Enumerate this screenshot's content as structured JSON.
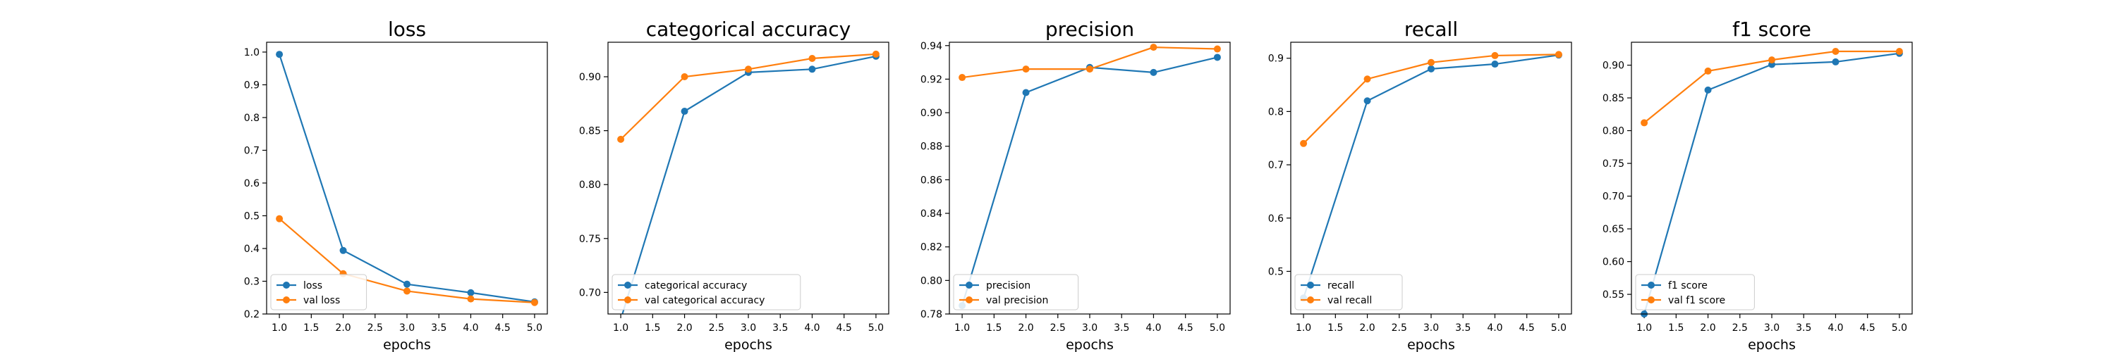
{
  "figure": {
    "colors": {
      "series1": "#1f77b4",
      "series2": "#ff7f0e"
    }
  },
  "chart_data": [
    {
      "type": "line",
      "title": "loss",
      "xlabel": "epochs",
      "ylabel": "",
      "x": [
        1,
        2,
        3,
        4,
        5
      ],
      "xlim": [
        0.8,
        5.2
      ],
      "ylim": [
        0.2,
        1.03
      ],
      "xticks": [
        "1.0",
        "1.5",
        "2.0",
        "2.5",
        "3.0",
        "3.5",
        "4.0",
        "4.5",
        "5.0"
      ],
      "yticks": [
        "0.2",
        "0.3",
        "0.4",
        "0.5",
        "0.6",
        "0.7",
        "0.8",
        "0.9",
        "1.0"
      ],
      "legend": "lower-left",
      "grid": false,
      "series": [
        {
          "name": "loss",
          "values": [
            0.993,
            0.394,
            0.291,
            0.265,
            0.237
          ]
        },
        {
          "name": "val loss",
          "values": [
            0.491,
            0.323,
            0.27,
            0.246,
            0.235
          ]
        }
      ]
    },
    {
      "type": "line",
      "title": "categorical accuracy",
      "xlabel": "epochs",
      "ylabel": "",
      "x": [
        1,
        2,
        3,
        4,
        5
      ],
      "xlim": [
        0.8,
        5.2
      ],
      "ylim": [
        0.68,
        0.932
      ],
      "xticks": [
        "1.0",
        "1.5",
        "2.0",
        "2.5",
        "3.0",
        "3.5",
        "4.0",
        "4.5",
        "5.0"
      ],
      "yticks": [
        "0.70",
        "0.75",
        "0.80",
        "0.85",
        "0.90"
      ],
      "legend": "lower-left",
      "grid": false,
      "series": [
        {
          "name": "categorical accuracy",
          "values": [
            0.675,
            0.868,
            0.904,
            0.907,
            0.919
          ]
        },
        {
          "name": "val categorical accuracy",
          "values": [
            0.842,
            0.9,
            0.907,
            0.917,
            0.921
          ]
        }
      ]
    },
    {
      "type": "line",
      "title": "precision",
      "xlabel": "epochs",
      "ylabel": "",
      "x": [
        1,
        2,
        3,
        4,
        5
      ],
      "xlim": [
        0.8,
        5.2
      ],
      "ylim": [
        0.78,
        0.942
      ],
      "xticks": [
        "1.0",
        "1.5",
        "2.0",
        "2.5",
        "3.0",
        "3.5",
        "4.0",
        "4.5",
        "5.0"
      ],
      "yticks": [
        "0.78",
        "0.80",
        "0.82",
        "0.84",
        "0.86",
        "0.88",
        "0.90",
        "0.92",
        "0.94"
      ],
      "legend": "lower-left",
      "grid": false,
      "series": [
        {
          "name": "precision",
          "values": [
            0.785,
            0.912,
            0.927,
            0.924,
            0.933
          ]
        },
        {
          "name": "val precision",
          "values": [
            0.921,
            0.926,
            0.926,
            0.939,
            0.938
          ]
        }
      ]
    },
    {
      "type": "line",
      "title": "recall",
      "xlabel": "epochs",
      "ylabel": "",
      "x": [
        1,
        2,
        3,
        4,
        5
      ],
      "xlim": [
        0.8,
        5.2
      ],
      "ylim": [
        0.42,
        0.93
      ],
      "xticks": [
        "1.0",
        "1.5",
        "2.0",
        "2.5",
        "3.0",
        "3.5",
        "4.0",
        "4.5",
        "5.0"
      ],
      "yticks": [
        "0.5",
        "0.6",
        "0.7",
        "0.8",
        "0.9"
      ],
      "legend": "lower-left",
      "grid": false,
      "series": [
        {
          "name": "recall",
          "values": [
            0.45,
            0.82,
            0.88,
            0.889,
            0.906
          ]
        },
        {
          "name": "val recall",
          "values": [
            0.74,
            0.861,
            0.892,
            0.905,
            0.907
          ]
        }
      ]
    },
    {
      "type": "line",
      "title": "f1 score",
      "xlabel": "epochs",
      "ylabel": "",
      "x": [
        1,
        2,
        3,
        4,
        5
      ],
      "xlim": [
        0.8,
        5.2
      ],
      "ylim": [
        0.52,
        0.935
      ],
      "xticks": [
        "1.0",
        "1.5",
        "2.0",
        "2.5",
        "3.0",
        "3.5",
        "4.0",
        "4.5",
        "5.0"
      ],
      "yticks": [
        "0.55",
        "0.60",
        "0.65",
        "0.70",
        "0.75",
        "0.80",
        "0.85",
        "0.90"
      ],
      "legend": "lower-left",
      "grid": false,
      "series": [
        {
          "name": "f1 score",
          "values": [
            0.52,
            0.862,
            0.901,
            0.905,
            0.918
          ]
        },
        {
          "name": "val f1 score",
          "values": [
            0.812,
            0.891,
            0.908,
            0.921,
            0.921
          ]
        }
      ]
    }
  ]
}
